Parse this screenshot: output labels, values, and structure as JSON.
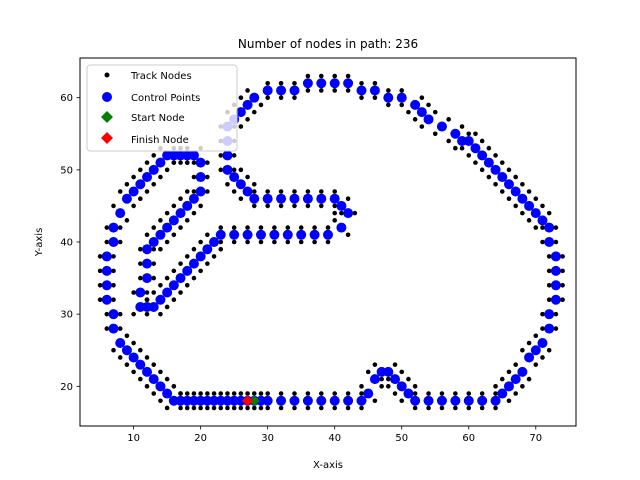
{
  "chart_data": {
    "type": "scatter",
    "title": "Number of nodes in path: 236",
    "xlabel": "X-axis",
    "ylabel": "Y-axis",
    "xlim": [
      2,
      76
    ],
    "ylim": [
      14.5,
      65.5
    ],
    "xticks": [
      10,
      20,
      30,
      40,
      50,
      60,
      70
    ],
    "yticks": [
      20,
      30,
      40,
      50,
      60
    ],
    "grid": false,
    "legend_position": "top-left",
    "series": [
      {
        "name": "Track Nodes",
        "color": "#000000",
        "marker": "circle-small"
      },
      {
        "name": "Control Points",
        "color": "#0000ff",
        "marker": "circle"
      },
      {
        "name": "Start Node",
        "color": "#008000",
        "marker": "diamond"
      },
      {
        "name": "Finish Node",
        "color": "#ff0000",
        "marker": "diamond"
      }
    ],
    "control_path": [
      [
        28,
        18
      ],
      [
        27,
        18
      ],
      [
        26,
        18
      ],
      [
        25,
        18
      ],
      [
        24,
        18
      ],
      [
        23,
        18
      ],
      [
        22,
        18
      ],
      [
        21,
        18
      ],
      [
        20,
        18
      ],
      [
        19,
        18
      ],
      [
        18,
        18
      ],
      [
        17,
        18
      ],
      [
        16,
        18
      ],
      [
        15,
        19
      ],
      [
        14,
        20
      ],
      [
        13,
        21
      ],
      [
        12,
        22
      ],
      [
        11,
        23
      ],
      [
        10,
        24
      ],
      [
        9,
        25
      ],
      [
        8,
        26
      ],
      [
        7,
        28
      ],
      [
        7,
        30
      ],
      [
        6,
        32
      ],
      [
        6,
        34
      ],
      [
        6,
        36
      ],
      [
        6,
        38
      ],
      [
        7,
        40
      ],
      [
        7,
        42
      ],
      [
        8,
        44
      ],
      [
        9,
        46
      ],
      [
        10,
        47
      ],
      [
        11,
        48
      ],
      [
        12,
        49
      ],
      [
        13,
        50
      ],
      [
        14,
        51
      ],
      [
        15,
        52
      ],
      [
        16,
        52
      ],
      [
        17,
        52
      ],
      [
        18,
        52
      ],
      [
        19,
        52
      ],
      [
        20,
        51
      ],
      [
        20,
        49
      ],
      [
        20,
        47
      ],
      [
        19,
        46
      ],
      [
        18,
        45
      ],
      [
        17,
        44
      ],
      [
        16,
        43
      ],
      [
        15,
        42
      ],
      [
        14,
        41
      ],
      [
        13,
        40
      ],
      [
        12,
        39
      ],
      [
        12,
        37
      ],
      [
        12,
        35
      ],
      [
        11,
        33
      ],
      [
        11,
        31
      ],
      [
        12,
        31
      ],
      [
        13,
        31
      ],
      [
        14,
        32
      ],
      [
        15,
        33
      ],
      [
        16,
        34
      ],
      [
        17,
        35
      ],
      [
        18,
        36
      ],
      [
        19,
        37
      ],
      [
        20,
        38
      ],
      [
        21,
        39
      ],
      [
        22,
        40
      ],
      [
        23,
        41
      ],
      [
        25,
        41
      ],
      [
        27,
        41
      ],
      [
        29,
        41
      ],
      [
        31,
        41
      ],
      [
        33,
        41
      ],
      [
        35,
        41
      ],
      [
        37,
        41
      ],
      [
        39,
        41
      ],
      [
        41,
        42
      ],
      [
        42,
        44
      ],
      [
        41,
        45
      ],
      [
        40,
        46
      ],
      [
        38,
        46
      ],
      [
        36,
        46
      ],
      [
        34,
        46
      ],
      [
        32,
        46
      ],
      [
        30,
        46
      ],
      [
        28,
        46
      ],
      [
        27,
        47
      ],
      [
        26,
        48
      ],
      [
        25,
        49
      ],
      [
        24,
        50
      ],
      [
        24,
        52
      ],
      [
        24,
        54
      ],
      [
        24,
        56
      ],
      [
        25,
        57
      ],
      [
        26,
        58
      ],
      [
        27,
        59
      ],
      [
        28,
        60
      ],
      [
        30,
        61
      ],
      [
        32,
        61
      ],
      [
        34,
        61
      ],
      [
        36,
        62
      ],
      [
        38,
        62
      ],
      [
        40,
        62
      ],
      [
        42,
        62
      ],
      [
        44,
        61
      ],
      [
        46,
        61
      ],
      [
        48,
        60
      ],
      [
        50,
        60
      ],
      [
        52,
        59
      ],
      [
        53,
        58
      ],
      [
        54,
        57
      ],
      [
        56,
        56
      ],
      [
        58,
        55
      ],
      [
        59,
        54
      ],
      [
        60,
        54
      ],
      [
        61,
        53
      ],
      [
        62,
        52
      ],
      [
        63,
        51
      ],
      [
        64,
        50
      ],
      [
        65,
        49
      ],
      [
        66,
        48
      ],
      [
        67,
        47
      ],
      [
        68,
        46
      ],
      [
        69,
        45
      ],
      [
        70,
        44
      ],
      [
        71,
        43
      ],
      [
        72,
        42
      ],
      [
        72,
        40
      ],
      [
        73,
        38
      ],
      [
        73,
        36
      ],
      [
        73,
        34
      ],
      [
        73,
        32
      ],
      [
        72,
        30
      ],
      [
        72,
        28
      ],
      [
        71,
        26
      ],
      [
        70,
        25
      ],
      [
        69,
        24
      ],
      [
        68,
        22
      ],
      [
        67,
        21
      ],
      [
        66,
        20
      ],
      [
        65,
        19
      ],
      [
        64,
        18
      ],
      [
        62,
        18
      ],
      [
        60,
        18
      ],
      [
        58,
        18
      ],
      [
        56,
        18
      ],
      [
        54,
        18
      ],
      [
        52,
        18
      ],
      [
        51,
        19
      ],
      [
        50,
        20
      ],
      [
        49,
        21
      ],
      [
        48,
        22
      ],
      [
        47,
        22
      ],
      [
        46,
        21
      ],
      [
        45,
        19
      ],
      [
        44,
        18
      ],
      [
        42,
        18
      ],
      [
        40,
        18
      ],
      [
        38,
        18
      ],
      [
        36,
        18
      ],
      [
        34,
        18
      ],
      [
        32,
        18
      ],
      [
        30,
        18
      ],
      [
        29,
        18
      ]
    ],
    "start_node": [
      28,
      18
    ],
    "finish_node": [
      27,
      18
    ]
  }
}
